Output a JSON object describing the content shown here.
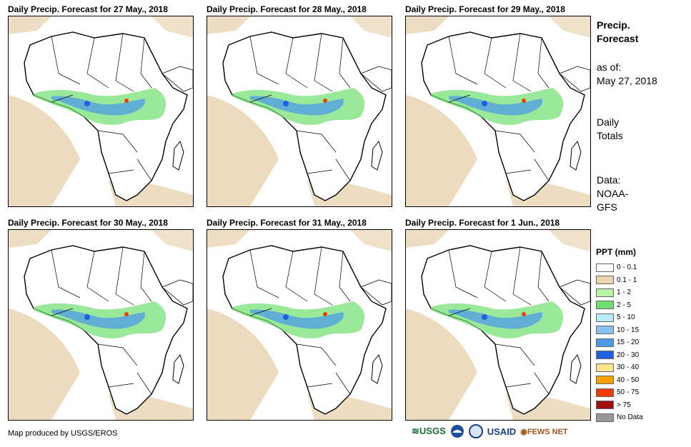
{
  "panels": [
    {
      "title": "Daily Precip. Forecast for 27 May., 2018"
    },
    {
      "title": "Daily Precip. Forecast for 28 May., 2018"
    },
    {
      "title": "Daily Precip. Forecast for 29 May., 2018"
    },
    {
      "title": "Daily Precip. Forecast for 30 May., 2018"
    },
    {
      "title": "Daily Precip. Forecast for 31 May., 2018"
    },
    {
      "title": "Daily Precip. Forecast for 1 Jun., 2018"
    }
  ],
  "side": {
    "title_line1": "Precip.",
    "title_line2": "Forecast",
    "asof_line1": "as of:",
    "asof_line2": "May 27, 2018",
    "totals_line1": "Daily",
    "totals_line2": "Totals",
    "data_line1": "Data:",
    "data_line2": "NOAA-",
    "data_line3": "GFS"
  },
  "legend": {
    "title": "PPT (mm)",
    "items": [
      {
        "label": "0 - 0.1",
        "color": "#ffffff"
      },
      {
        "label": "0.1 - 1",
        "color": "#e9d5b4"
      },
      {
        "label": "1 - 2",
        "color": "#b6f5a4"
      },
      {
        "label": "2 - 5",
        "color": "#6fe06f"
      },
      {
        "label": "5 - 10",
        "color": "#b5eef5"
      },
      {
        "label": "10 - 15",
        "color": "#86c1f0"
      },
      {
        "label": "15 - 20",
        "color": "#4e9ae8"
      },
      {
        "label": "20 - 30",
        "color": "#2060e0"
      },
      {
        "label": "30 - 40",
        "color": "#ffe58a"
      },
      {
        "label": "40 - 50",
        "color": "#f5a000"
      },
      {
        "label": "50 - 75",
        "color": "#f03c00"
      },
      {
        "label": "> 75",
        "color": "#a01010"
      },
      {
        "label": "No Data",
        "color": "#999999"
      }
    ]
  },
  "credit": "Map produced by USGS/EROS",
  "logos": {
    "usgs": "USGS",
    "usaid": "USAID",
    "fewsnet": "FEWS NET"
  }
}
